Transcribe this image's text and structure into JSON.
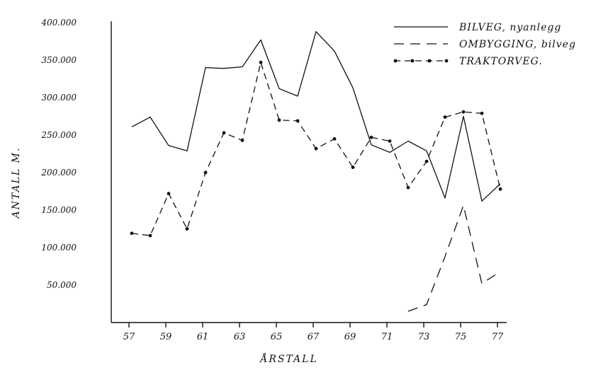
{
  "chart_data": {
    "type": "line",
    "title": "",
    "xlabel": "ÅRSTALL",
    "ylabel": "ANTALL M.",
    "xlim": [
      57,
      77
    ],
    "ylim": [
      0,
      400000
    ],
    "x_ticks": [
      "57",
      "59",
      "61",
      "63",
      "65",
      "67",
      "69",
      "71",
      "73",
      "75",
      "77"
    ],
    "y_ticks": [
      "400.000",
      "350.000",
      "300.000",
      "250.000",
      "200.000",
      "150.000",
      "100.000",
      "50.000"
    ],
    "grid": false,
    "legend_position": "top-right",
    "series": [
      {
        "name": "BILVEG, nyanlegg",
        "style": "solid",
        "x": [
          57,
          58,
          59,
          60,
          61,
          62,
          63,
          64,
          65,
          66,
          67,
          68,
          69,
          70,
          71,
          72,
          73,
          74,
          75,
          76,
          77
        ],
        "y": [
          261000,
          274000,
          236000,
          229000,
          340000,
          339000,
          341000,
          377000,
          312000,
          302000,
          388000,
          362000,
          313000,
          237000,
          227000,
          242000,
          229000,
          166000,
          275000,
          162000,
          185000
        ]
      },
      {
        "name": "OMBYGGING, bilveg",
        "style": "dashed",
        "x": [
          72,
          73,
          74,
          75,
          76,
          77
        ],
        "y": [
          15000,
          24000,
          88000,
          156000,
          52000,
          68000
        ]
      },
      {
        "name": "TRAKTORVEG.",
        "style": "dash-dot",
        "x": [
          57,
          58,
          59,
          60,
          61,
          62,
          63,
          64,
          65,
          66,
          67,
          68,
          69,
          70,
          71,
          72,
          73,
          74,
          75,
          76,
          77
        ],
        "y": [
          119000,
          116000,
          172000,
          125000,
          200000,
          253000,
          243000,
          347000,
          270000,
          269000,
          232000,
          245000,
          207000,
          247000,
          242000,
          180000,
          215000,
          274000,
          281000,
          279000,
          178000
        ]
      }
    ]
  }
}
